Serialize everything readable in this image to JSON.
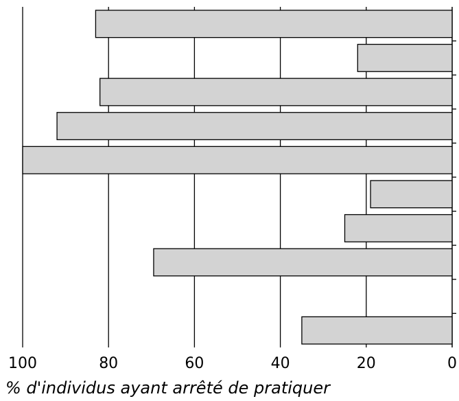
{
  "chart_data": {
    "type": "hbar",
    "xlabel": "% d'individus ayant arrêté de pratiquer",
    "categories": [
      null,
      null,
      null,
      null,
      null,
      null,
      null,
      null,
      null,
      null
    ],
    "values": [
      83,
      22,
      82,
      92,
      100,
      19,
      25,
      69.5,
      null,
      35
    ],
    "color": "#d3d3d3",
    "xlim": [
      100,
      0
    ],
    "xticks": [
      100,
      80,
      60,
      40,
      20,
      0
    ],
    "grid": true
  }
}
